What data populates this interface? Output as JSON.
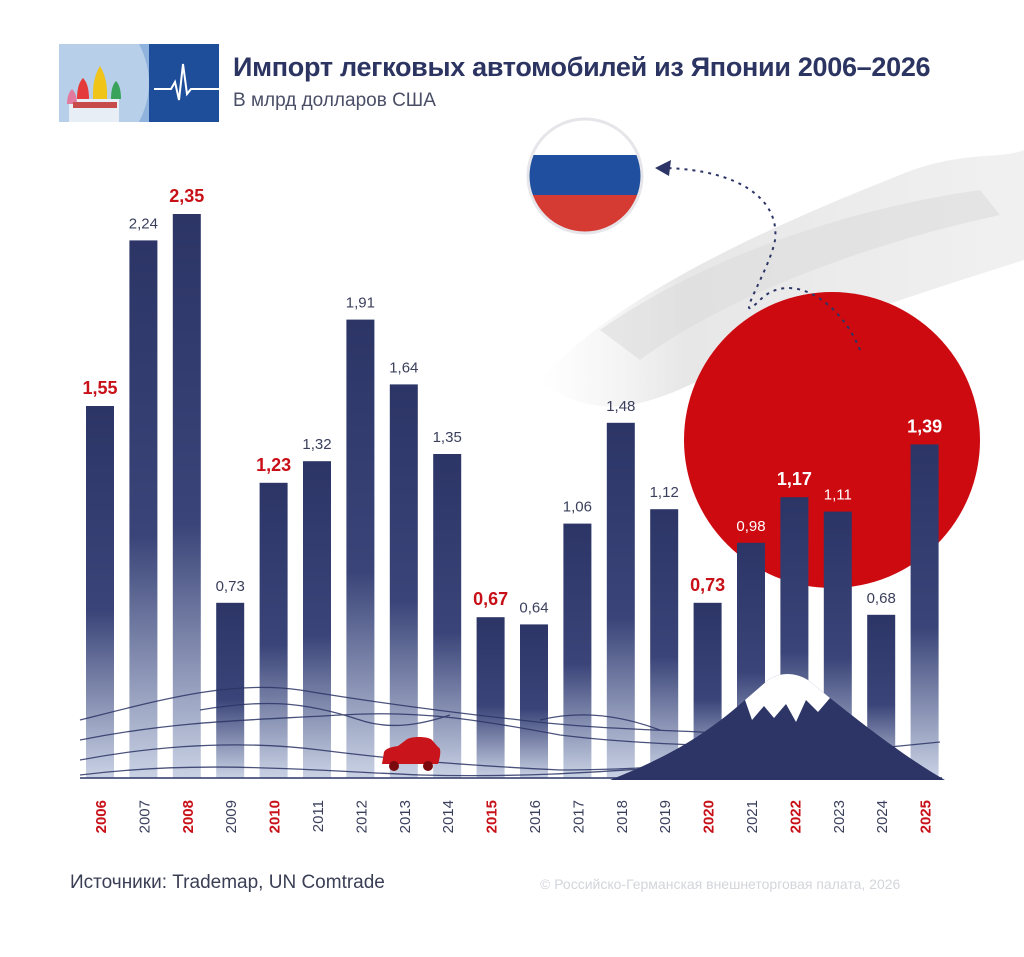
{
  "header": {
    "title": "Импорт легковых автомобилей из Японии 2006–2026",
    "subtitle": "В млрд долларов США"
  },
  "footer": {
    "source": "Источники: Trademap, UN Comtrade",
    "copyright": "© Российско-Германская внешнеторговая палата, 2026"
  },
  "colors": {
    "bar": "#2c3566",
    "highlight_text": "#c81018",
    "normal_text": "#3a3f5c",
    "sun": "#cc0a10",
    "flag_white": "#ffffff",
    "flag_blue": "#1f4f9e",
    "flag_red": "#d53a33"
  },
  "icons": [
    "logo-image",
    "russia-flag-icon",
    "japan-sun",
    "car-icon",
    "mount-fuji"
  ],
  "chart_data": {
    "type": "bar",
    "categories": [
      "2006",
      "2007",
      "2008",
      "2009",
      "2010",
      "2011",
      "2012",
      "2013",
      "2014",
      "2015",
      "2016",
      "2017",
      "2018",
      "2019",
      "2020",
      "2021",
      "2022",
      "2023",
      "2024",
      "2025"
    ],
    "values": [
      1.55,
      2.24,
      2.35,
      0.73,
      1.23,
      1.32,
      1.91,
      1.64,
      1.35,
      0.67,
      0.64,
      1.06,
      1.48,
      1.12,
      0.73,
      0.98,
      1.17,
      1.11,
      0.68,
      1.39
    ],
    "value_labels": [
      "1,55",
      "2,24",
      "2,35",
      "0,73",
      "1,23",
      "1,32",
      "1,91",
      "1,64",
      "1,35",
      "0,67",
      "0,64",
      "1,06",
      "1,48",
      "1,12",
      "0,73",
      "0,98",
      "1,17",
      "1,11",
      "0,68",
      "1,39"
    ],
    "highlighted": [
      "2006",
      "2008",
      "2010",
      "2015",
      "2020",
      "2022",
      "2025"
    ],
    "ylim": [
      0,
      2.35
    ],
    "title": "Импорт легковых автомобилей из Японии 2006–2026",
    "ylabel": "",
    "xlabel": ""
  }
}
